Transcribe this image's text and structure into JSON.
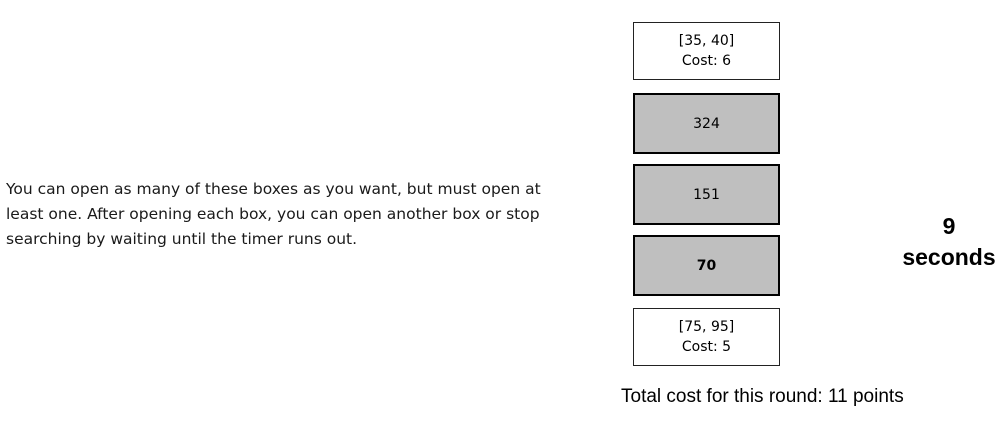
{
  "instructions": "You can open as many of these boxes as you want, but must open at least one. After opening each box, you can open another box or stop searching by waiting until the timer runs out.",
  "boxes": [
    {
      "state": "closed",
      "range": "[35, 40]",
      "cost": "Cost: 6"
    },
    {
      "state": "opened",
      "value": "324"
    },
    {
      "state": "opened",
      "value": "151"
    },
    {
      "state": "opened",
      "value": "70"
    },
    {
      "state": "closed",
      "range": "[75, 95]",
      "cost": "Cost: 5"
    }
  ],
  "total_cost": "Total cost for this round: 11 points",
  "timer": {
    "value": "9",
    "unit": "seconds"
  }
}
